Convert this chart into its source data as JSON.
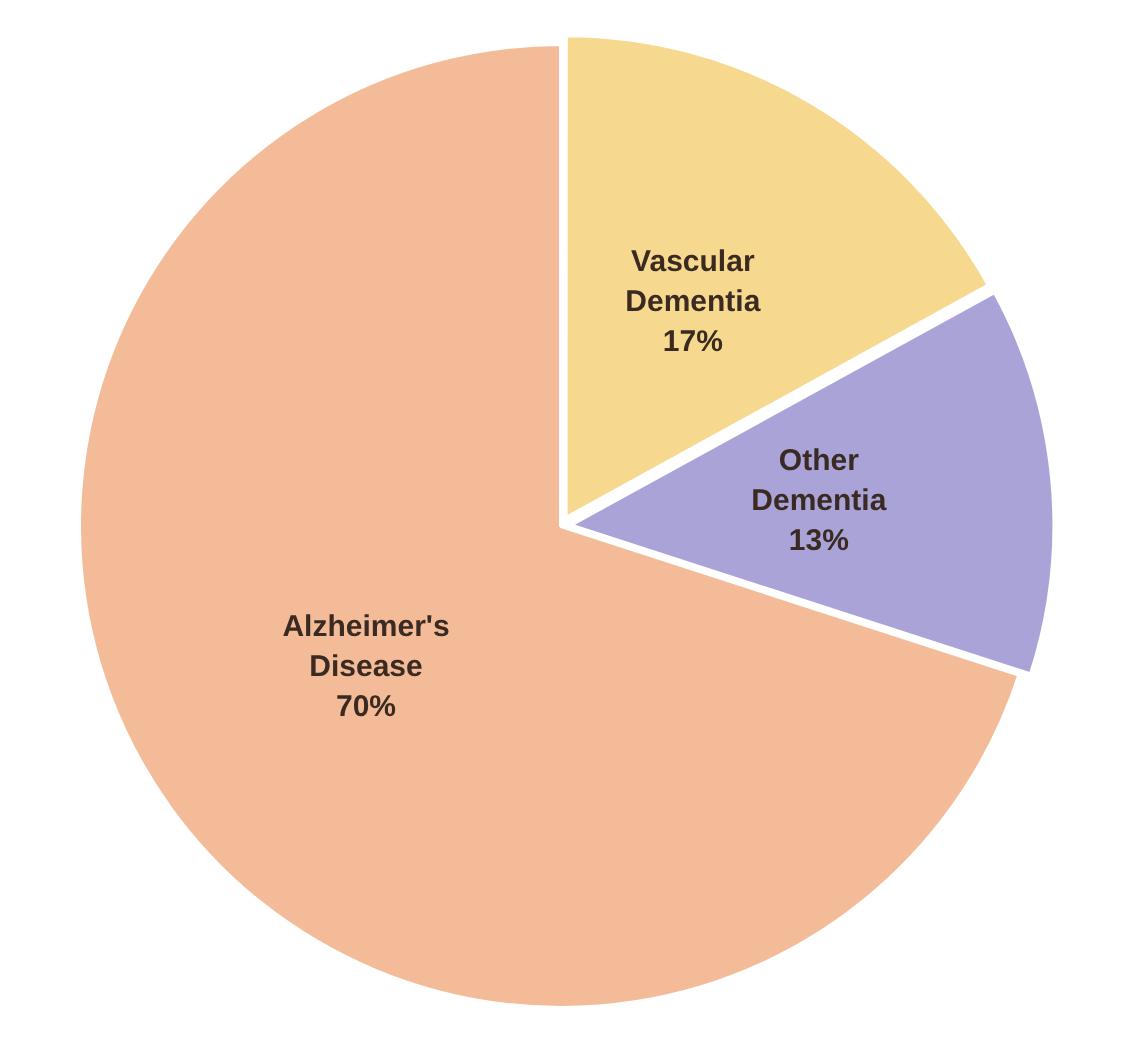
{
  "chart_data": {
    "type": "pie",
    "categories": [
      "Vascular Dementia",
      "Other Dementia",
      "Alzheimer's Disease"
    ],
    "values": [
      17,
      13,
      70
    ],
    "value_labels": [
      "17%",
      "13%",
      "70%"
    ],
    "colors": [
      "#f6d98e",
      "#aaa3d8",
      "#f3bb98"
    ],
    "legend": false
  }
}
